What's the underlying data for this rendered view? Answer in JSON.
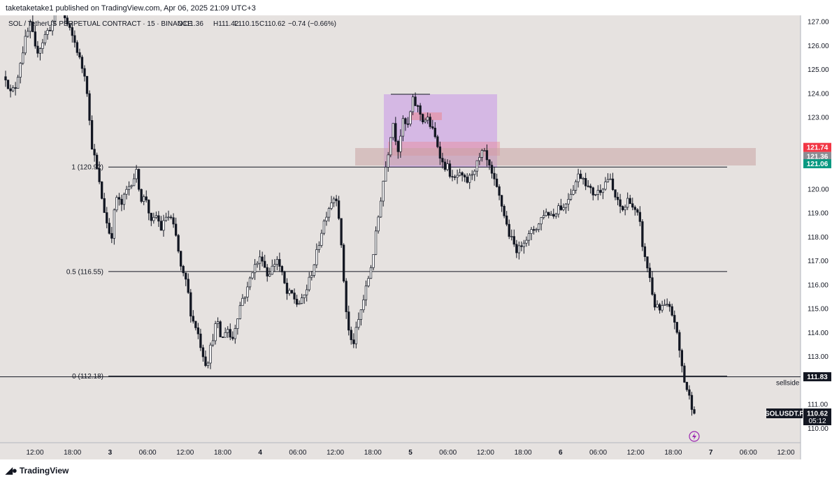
{
  "header": {
    "publisher": "taketaketake1 published on TradingView.com, Apr 06, 2025 21:09 UTC+3"
  },
  "legend": {
    "symbol": "SOL / TetherUS PERPETUAL CONTRACT · 15 · BINANCE",
    "open": "O111.36",
    "high": "H111.42",
    "low": "L110.15",
    "close": "C110.62",
    "change": "−0.74 (−0.66%)"
  },
  "footer": {
    "brand": "TradingView"
  },
  "colors": {
    "background": "#e6e2e0",
    "up": "#ffffff",
    "down": "#131722",
    "red_tag": "#f23645",
    "teal_tag": "#089981",
    "zone": "#c9a4a4",
    "purple_box": "#cfa9e6",
    "red_block": "#e88a9a"
  },
  "chart_data": {
    "type": "candlestick",
    "symbol": "SOLUSDT.P",
    "y_ticks": [
      127.0,
      126.0,
      125.0,
      124.0,
      123.0,
      122.0,
      121.0,
      120.0,
      119.0,
      118.0,
      117.0,
      116.0,
      115.0,
      114.0,
      113.0,
      112.0,
      111.0,
      110.0
    ],
    "y_tick_labels": [
      "127.00",
      "126.00",
      "125.00",
      "124.00",
      "123.00",
      "",
      "",
      "120.00",
      "119.00",
      "118.00",
      "117.00",
      "116.00",
      "115.00",
      "114.00",
      "113.00",
      "",
      "111.00",
      "110.00"
    ],
    "x_tick_labels": [
      "12:00",
      "18:00",
      "3",
      "06:00",
      "12:00",
      "18:00",
      "4",
      "06:00",
      "12:00",
      "18:00",
      "5",
      "06:00",
      "12:00",
      "18:00",
      "6",
      "06:00",
      "12:00",
      "18:00",
      "7",
      "06:00",
      "12:00"
    ],
    "fib_levels": [
      {
        "label": "1 (120.92)",
        "value": 120.92
      },
      {
        "label": "0.5 (116.55)",
        "value": 116.55
      },
      {
        "label": "0 (112.18)",
        "value": 112.18
      }
    ],
    "sellside": {
      "label": "sellside",
      "value": 111.83
    },
    "price_tags": [
      {
        "label": "121.74",
        "value": 121.74,
        "color": "red"
      },
      {
        "label": "121.36",
        "value": 121.36,
        "color": "gray"
      },
      {
        "label": "121.06",
        "value": 121.06,
        "color": "teal"
      },
      {
        "label": "111.83",
        "value": 111.83,
        "color": "black"
      }
    ],
    "last_price": {
      "symbol": "SOLUSDT.P",
      "price": "110.62",
      "countdown": "05:12",
      "value": 110.62
    },
    "path": [
      [
        0,
        124.7
      ],
      [
        1,
        124.0
      ],
      [
        2,
        124.3
      ],
      [
        3,
        125.4
      ],
      [
        4,
        126.3
      ],
      [
        5,
        126.9
      ],
      [
        6,
        125.7
      ],
      [
        7,
        126.0
      ],
      [
        8,
        126.5
      ],
      [
        9,
        126.8
      ],
      [
        10,
        127.4
      ],
      [
        11,
        127.6
      ],
      [
        12,
        127.0
      ],
      [
        13,
        126.5
      ],
      [
        14,
        126.0
      ],
      [
        15,
        125.2
      ],
      [
        16,
        124.7
      ],
      [
        17,
        122.0
      ],
      [
        18,
        121.0
      ],
      [
        19,
        119.8
      ],
      [
        20,
        118.7
      ],
      [
        21,
        117.9
      ],
      [
        22,
        119.7
      ],
      [
        23,
        119.3
      ],
      [
        24,
        119.9
      ],
      [
        25,
        120.3
      ],
      [
        26,
        120.7
      ],
      [
        27,
        119.6
      ],
      [
        28,
        119.6
      ],
      [
        29,
        118.5
      ],
      [
        30,
        118.9
      ],
      [
        31,
        118.3
      ],
      [
        32,
        118.9
      ],
      [
        33,
        118.7
      ],
      [
        34,
        117.9
      ],
      [
        35,
        116.5
      ],
      [
        36,
        116.1
      ],
      [
        37,
        114.6
      ],
      [
        38,
        114.2
      ],
      [
        39,
        113.3
      ],
      [
        40,
        112.6
      ],
      [
        41,
        113.6
      ],
      [
        42,
        114.5
      ],
      [
        43,
        113.6
      ],
      [
        44,
        114.3
      ],
      [
        45,
        113.6
      ],
      [
        46,
        114.6
      ],
      [
        47,
        115.4
      ],
      [
        48,
        115.7
      ],
      [
        49,
        116.6
      ],
      [
        50,
        116.9
      ],
      [
        51,
        117.2
      ],
      [
        52,
        116.4
      ],
      [
        53,
        116.7
      ],
      [
        54,
        117.1
      ],
      [
        55,
        116.4
      ],
      [
        56,
        115.6
      ],
      [
        57,
        115.6
      ],
      [
        58,
        115.2
      ],
      [
        59,
        115.3
      ],
      [
        60,
        115.9
      ],
      [
        61,
        116.6
      ],
      [
        62,
        117.4
      ],
      [
        63,
        118.4
      ],
      [
        64,
        119.1
      ],
      [
        65,
        119.6
      ],
      [
        66,
        119.7
      ],
      [
        67,
        116.9
      ],
      [
        68,
        114.3
      ],
      [
        69,
        113.4
      ],
      [
        70,
        114.3
      ],
      [
        71,
        115.2
      ],
      [
        72,
        116.1
      ],
      [
        73,
        117.1
      ],
      [
        74,
        118.6
      ],
      [
        75,
        120.2
      ],
      [
        76,
        121.4
      ],
      [
        77,
        122.9
      ],
      [
        78,
        121.6
      ],
      [
        79,
        122.8
      ],
      [
        80,
        122.6
      ],
      [
        81,
        123.7
      ],
      [
        82,
        123.4
      ],
      [
        83,
        122.9
      ],
      [
        84,
        122.9
      ],
      [
        85,
        122.4
      ],
      [
        86,
        121.8
      ],
      [
        87,
        121.0
      ],
      [
        88,
        120.9
      ],
      [
        89,
        120.3
      ],
      [
        90,
        120.6
      ],
      [
        91,
        120.4
      ],
      [
        92,
        120.3
      ],
      [
        93,
        120.8
      ],
      [
        94,
        121.1
      ],
      [
        95,
        121.6
      ],
      [
        96,
        121.0
      ],
      [
        97,
        120.4
      ],
      [
        98,
        119.8
      ],
      [
        99,
        119.1
      ],
      [
        100,
        118.2
      ],
      [
        101,
        117.7
      ],
      [
        102,
        117.4
      ],
      [
        103,
        117.9
      ],
      [
        104,
        118.0
      ],
      [
        105,
        118.3
      ],
      [
        106,
        118.5
      ],
      [
        107,
        119.0
      ],
      [
        108,
        119.0
      ],
      [
        109,
        118.9
      ],
      [
        110,
        119.3
      ],
      [
        111,
        119.2
      ],
      [
        112,
        119.7
      ],
      [
        113,
        120.1
      ],
      [
        114,
        120.6
      ],
      [
        115,
        120.5
      ],
      [
        116,
        120.0
      ],
      [
        117,
        119.8
      ],
      [
        118,
        119.9
      ],
      [
        119,
        120.2
      ],
      [
        120,
        120.5
      ],
      [
        121,
        119.8
      ],
      [
        122,
        119.3
      ],
      [
        123,
        119.1
      ],
      [
        124,
        119.7
      ],
      [
        125,
        119.1
      ],
      [
        126,
        118.8
      ],
      [
        127,
        117.2
      ],
      [
        128,
        116.5
      ],
      [
        129,
        115.2
      ],
      [
        130,
        114.9
      ],
      [
        131,
        115.1
      ],
      [
        132,
        115.0
      ],
      [
        133,
        114.6
      ],
      [
        134,
        113.3
      ],
      [
        135,
        112.0
      ],
      [
        136,
        111.3
      ],
      [
        137,
        110.62
      ]
    ]
  }
}
